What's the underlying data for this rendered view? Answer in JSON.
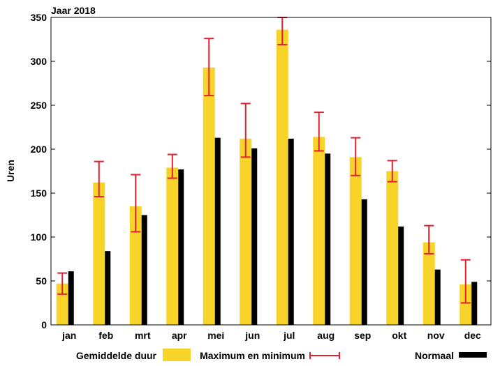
{
  "chart_data": {
    "type": "bar",
    "title": "Jaar 2018",
    "ylabel": "Uren",
    "xlabel": "",
    "ylim": [
      0,
      350
    ],
    "yticks": [
      0,
      50,
      100,
      150,
      200,
      250,
      300,
      350
    ],
    "grid": false,
    "legend_position": "bottom",
    "categories": [
      "jan",
      "feb",
      "mrt",
      "apr",
      "mei",
      "jun",
      "jul",
      "aug",
      "sep",
      "okt",
      "nov",
      "dec"
    ],
    "series": [
      {
        "name": "Gemiddelde duur",
        "color": "#f8d32a",
        "values": [
          47,
          162,
          135,
          179,
          293,
          212,
          336,
          214,
          191,
          175,
          94,
          46
        ]
      },
      {
        "name": "Normaal",
        "color": "#000000",
        "values": [
          61,
          84,
          125,
          177,
          213,
          201,
          212,
          195,
          143,
          112,
          63,
          49
        ]
      }
    ],
    "error_bars": {
      "name": "Maximum en minimum",
      "color": "#e0202e",
      "min": [
        35,
        146,
        106,
        167,
        261,
        191,
        319,
        198,
        170,
        163,
        81,
        25
      ],
      "max": [
        59,
        186,
        171,
        194,
        326,
        252,
        350,
        242,
        213,
        187,
        113,
        74
      ]
    }
  }
}
